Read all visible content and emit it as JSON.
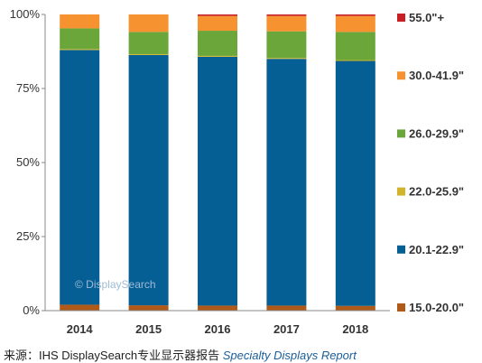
{
  "chart_data": {
    "type": "bar",
    "stacked": true,
    "categories": [
      "2014",
      "2015",
      "2016",
      "2017",
      "2018"
    ],
    "y_ticks": [
      "0%",
      "25%",
      "50%",
      "75%",
      "100%"
    ],
    "ylim": [
      0,
      100
    ],
    "series": [
      {
        "name": "15.0-20.0\"",
        "color": "#b05a1a",
        "values": [
          2.0,
          1.8,
          1.7,
          1.7,
          1.6
        ]
      },
      {
        "name": "20.1-22.9\"",
        "color": "#055e94",
        "values": [
          86.0,
          84.5,
          84.0,
          83.3,
          82.7
        ]
      },
      {
        "name": "22.0-25.9\"",
        "color": "#d2b42c",
        "values": [
          0.3,
          0.3,
          0.3,
          0.3,
          0.3
        ]
      },
      {
        "name": "26.0-29.9\"",
        "color": "#6aa63a",
        "values": [
          7.0,
          7.5,
          8.5,
          9.0,
          9.5
        ]
      },
      {
        "name": "30.0-41.9\"",
        "color": "#f6922f",
        "values": [
          4.7,
          5.9,
          5.0,
          5.2,
          5.4
        ]
      },
      {
        "name": "55.0\"+",
        "color": "#c71f24",
        "values": [
          0.0,
          0.0,
          0.5,
          0.5,
          0.5
        ]
      }
    ],
    "legend_position": "right",
    "grid": false,
    "watermark": "© DisplaySearch"
  },
  "source": {
    "prefix": "来源：IHS DisplaySearch专业显示器报告 ",
    "report_name": "Specialty  Displays Report"
  }
}
